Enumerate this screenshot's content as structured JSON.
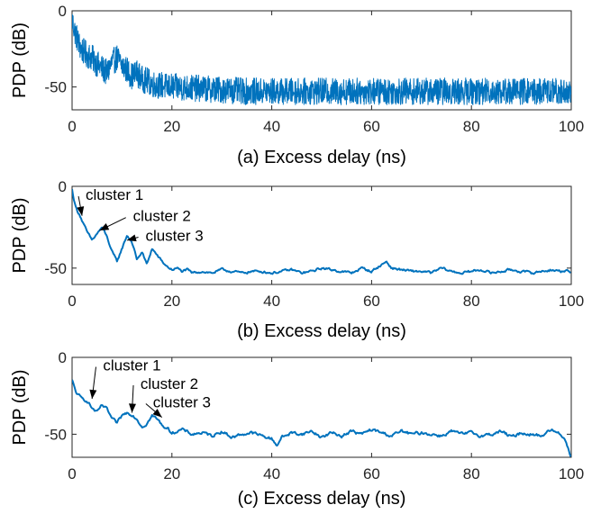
{
  "chart_data": [
    {
      "type": "line",
      "panel": "a",
      "xlabel": "(a) Excess delay (ns)",
      "ylabel": "PDP (dB)",
      "xlim": [
        0,
        100
      ],
      "ylim": [
        -65,
        0
      ],
      "xticks": [
        "0",
        "20",
        "40",
        "60",
        "80",
        "100"
      ],
      "yticks": [
        "0",
        "-50"
      ],
      "series": [
        {
          "color": "#0072BD",
          "noise": 11,
          "x": [
            0,
            0.5,
            1,
            1.5,
            2,
            3,
            4,
            5,
            6,
            7,
            8,
            9,
            10,
            11,
            12,
            13,
            14,
            15,
            16,
            17,
            18,
            19,
            20,
            25,
            30,
            35,
            40,
            45,
            50,
            55,
            60,
            65,
            70,
            75,
            80,
            85,
            90,
            95,
            99,
            100
          ],
          "y": [
            -5,
            -12,
            -17,
            -22,
            -25,
            -28,
            -30,
            -34,
            -37,
            -40,
            -33,
            -30,
            -35,
            -38,
            -42,
            -40,
            -44,
            -45,
            -47,
            -48,
            -48,
            -49,
            -49,
            -50,
            -51,
            -52,
            -52,
            -52,
            -52,
            -52,
            -52,
            -52,
            -52,
            -52,
            -52,
            -52,
            -52,
            -52,
            -52,
            -53
          ]
        }
      ],
      "annotations": []
    },
    {
      "type": "line",
      "panel": "b",
      "xlabel": "(b) Excess delay (ns)",
      "ylabel": "PDP (dB)",
      "xlim": [
        0,
        100
      ],
      "ylim": [
        -60,
        0
      ],
      "xticks": [
        "0",
        "20",
        "40",
        "60",
        "80",
        "100"
      ],
      "yticks": [
        "0",
        "-50"
      ],
      "series": [
        {
          "color": "#0072BD",
          "noise": 1.5,
          "x": [
            0,
            0.5,
            1,
            1.5,
            2,
            3,
            4,
            5,
            6,
            7,
            8,
            9,
            10,
            11,
            12,
            13,
            14,
            15,
            16,
            17,
            18,
            19,
            20,
            21,
            22,
            23,
            24,
            26,
            28,
            30,
            32,
            34,
            36,
            38,
            40,
            42,
            44,
            46,
            48,
            50,
            52,
            54,
            56,
            58,
            60,
            62,
            63,
            64,
            66,
            68,
            70,
            72,
            74,
            76,
            78,
            80,
            82,
            84,
            86,
            88,
            90,
            92,
            94,
            96,
            98,
            99,
            100
          ],
          "y": [
            -2,
            -10,
            -15,
            -17,
            -21,
            -28,
            -33,
            -29,
            -25,
            -31,
            -40,
            -46,
            -38,
            -30,
            -34,
            -45,
            -40,
            -48,
            -38,
            -42,
            -46,
            -49,
            -51,
            -50,
            -52,
            -51,
            -53,
            -52,
            -53,
            -51,
            -52,
            -53,
            -52,
            -52,
            -53,
            -52,
            -51,
            -53,
            -52,
            -50,
            -51,
            -52,
            -53,
            -50,
            -52,
            -48,
            -46,
            -50,
            -51,
            -52,
            -52,
            -53,
            -50,
            -52,
            -53,
            -52,
            -51,
            -53,
            -52,
            -51,
            -52,
            -53,
            -52,
            -51,
            -52,
            -51,
            -54
          ]
        }
      ],
      "annotations": [
        {
          "text": "cluster 1",
          "tx": 8.5,
          "ty": -5,
          "ax": 2,
          "ay": -18
        },
        {
          "text": "cluster 2",
          "tx": 18,
          "ty": -18,
          "ax": 5.5,
          "ay": -27
        },
        {
          "text": "cluster 3",
          "tx": 20.5,
          "ty": -30,
          "ax": 11,
          "ay": -33
        }
      ]
    },
    {
      "type": "line",
      "panel": "c",
      "xlabel": "(c) Excess delay (ns)",
      "ylabel": "PDP (dB)",
      "xlim": [
        0,
        100
      ],
      "ylim": [
        -65,
        0
      ],
      "xticks": [
        "0",
        "20",
        "40",
        "60",
        "80",
        "100"
      ],
      "yticks": [
        "0",
        "-50"
      ],
      "series": [
        {
          "color": "#0072BD",
          "noise": 2,
          "x": [
            0,
            0.5,
            1,
            2,
            3,
            4,
            5,
            6,
            7,
            8,
            9,
            10,
            11,
            12,
            13,
            14,
            15,
            16,
            17,
            18,
            19,
            20,
            22,
            24,
            26,
            28,
            30,
            32,
            34,
            36,
            38,
            40,
            41,
            42,
            44,
            46,
            48,
            50,
            52,
            54,
            56,
            58,
            60,
            62,
            64,
            66,
            68,
            70,
            72,
            74,
            76,
            78,
            80,
            82,
            84,
            86,
            88,
            90,
            92,
            94,
            96,
            97,
            98,
            99,
            100
          ],
          "y": [
            -15,
            -20,
            -24,
            -27,
            -28,
            -33,
            -36,
            -31,
            -34,
            -40,
            -43,
            -38,
            -36,
            -37,
            -40,
            -45,
            -43,
            -38,
            -40,
            -44,
            -46,
            -49,
            -47,
            -50,
            -49,
            -51,
            -48,
            -52,
            -50,
            -49,
            -51,
            -53,
            -57,
            -52,
            -49,
            -50,
            -48,
            -52,
            -49,
            -51,
            -48,
            -50,
            -47,
            -49,
            -51,
            -48,
            -50,
            -49,
            -50,
            -51,
            -48,
            -50,
            -49,
            -51,
            -50,
            -48,
            -52,
            -49,
            -50,
            -51,
            -47,
            -49,
            -50,
            -55,
            -65
          ]
        }
      ],
      "annotations": [
        {
          "text": "cluster 1",
          "tx": 12,
          "ty": -5,
          "ax": 4,
          "ay": -27
        },
        {
          "text": "cluster 2",
          "tx": 19.5,
          "ty": -17,
          "ax": 12,
          "ay": -36
        },
        {
          "text": "cluster 3",
          "tx": 22,
          "ty": -29,
          "ax": 18,
          "ay": -39
        }
      ]
    }
  ]
}
